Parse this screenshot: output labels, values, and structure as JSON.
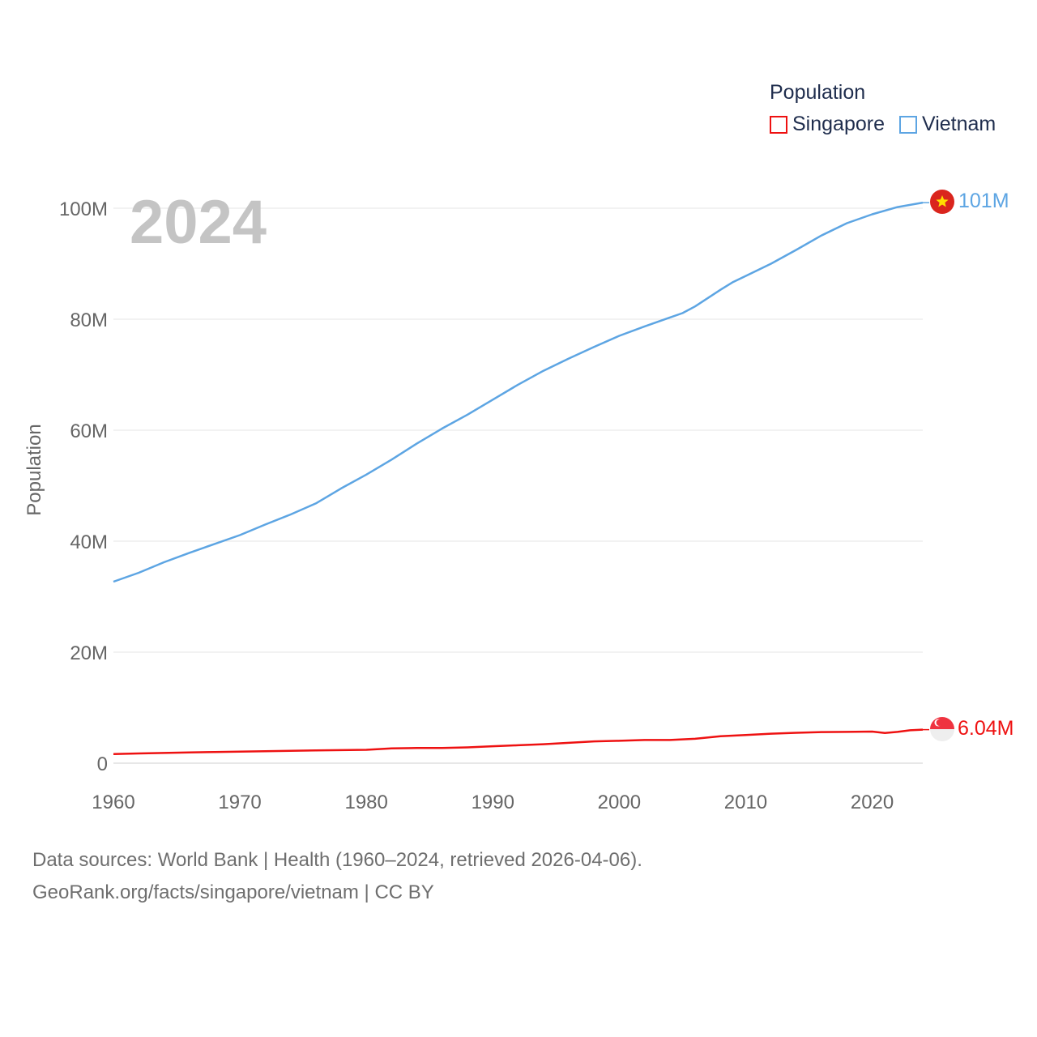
{
  "legend": {
    "title": "Population",
    "items": [
      {
        "label": "Singapore",
        "color": "#ee1111"
      },
      {
        "label": "Vietnam",
        "color": "#5da5e3"
      }
    ]
  },
  "year_label": "2024",
  "footer": {
    "line1": "Data sources: World Bank | Health (1960–2024, retrieved 2026-04-06).",
    "line2": "GeoRank.org/facts/singapore/vietnam | CC BY"
  },
  "chart_data": {
    "type": "line",
    "title": "",
    "xlabel": "",
    "ylabel": "Population",
    "xlim": [
      1960,
      2024
    ],
    "ylim": [
      0,
      100000000
    ],
    "x_ticks": [
      1960,
      1970,
      1980,
      1990,
      2000,
      2010,
      2020
    ],
    "x_tick_labels": [
      "1960",
      "1970",
      "1980",
      "1990",
      "2000",
      "2010",
      "2020"
    ],
    "y_ticks": [
      0,
      20000000,
      40000000,
      60000000,
      80000000,
      100000000
    ],
    "y_tick_labels": [
      "0",
      "20M",
      "40M",
      "60M",
      "80M",
      "100M"
    ],
    "series": [
      {
        "name": "Vietnam",
        "color": "#5da5e3",
        "end_label": "101M",
        "x": [
          1960,
          1962,
          1964,
          1966,
          1968,
          1970,
          1972,
          1974,
          1976,
          1978,
          1980,
          1982,
          1984,
          1986,
          1988,
          1990,
          1992,
          1994,
          1996,
          1998,
          2000,
          2002,
          2004,
          2005,
          2006,
          2008,
          2009,
          2010,
          2012,
          2014,
          2016,
          2018,
          2020,
          2022,
          2024
        ],
        "values": [
          32700000,
          34300000,
          36200000,
          37900000,
          39500000,
          41100000,
          43000000,
          44800000,
          46800000,
          49500000,
          52000000,
          54700000,
          57600000,
          60300000,
          62800000,
          65500000,
          68200000,
          70700000,
          72900000,
          75000000,
          77000000,
          78700000,
          80300000,
          81100000,
          82300000,
          85300000,
          86700000,
          87800000,
          90000000,
          92500000,
          95100000,
          97300000,
          98900000,
          100200000,
          101000000
        ]
      },
      {
        "name": "Singapore",
        "color": "#ee1111",
        "end_label": "6.04M",
        "x": [
          1960,
          1962,
          1964,
          1966,
          1968,
          1970,
          1972,
          1974,
          1976,
          1978,
          1980,
          1982,
          1984,
          1986,
          1988,
          1990,
          1992,
          1994,
          1996,
          1998,
          2000,
          2002,
          2004,
          2006,
          2008,
          2010,
          2012,
          2014,
          2016,
          2018,
          2020,
          2021,
          2022,
          2023,
          2024
        ],
        "values": [
          1650000,
          1750000,
          1840000,
          1930000,
          2010000,
          2070000,
          2150000,
          2230000,
          2290000,
          2350000,
          2410000,
          2650000,
          2730000,
          2730000,
          2850000,
          3050000,
          3230000,
          3420000,
          3670000,
          3930000,
          4030000,
          4180000,
          4170000,
          4400000,
          4840000,
          5080000,
          5310000,
          5470000,
          5610000,
          5640000,
          5690000,
          5450000,
          5640000,
          5920000,
          6040000
        ]
      }
    ]
  }
}
